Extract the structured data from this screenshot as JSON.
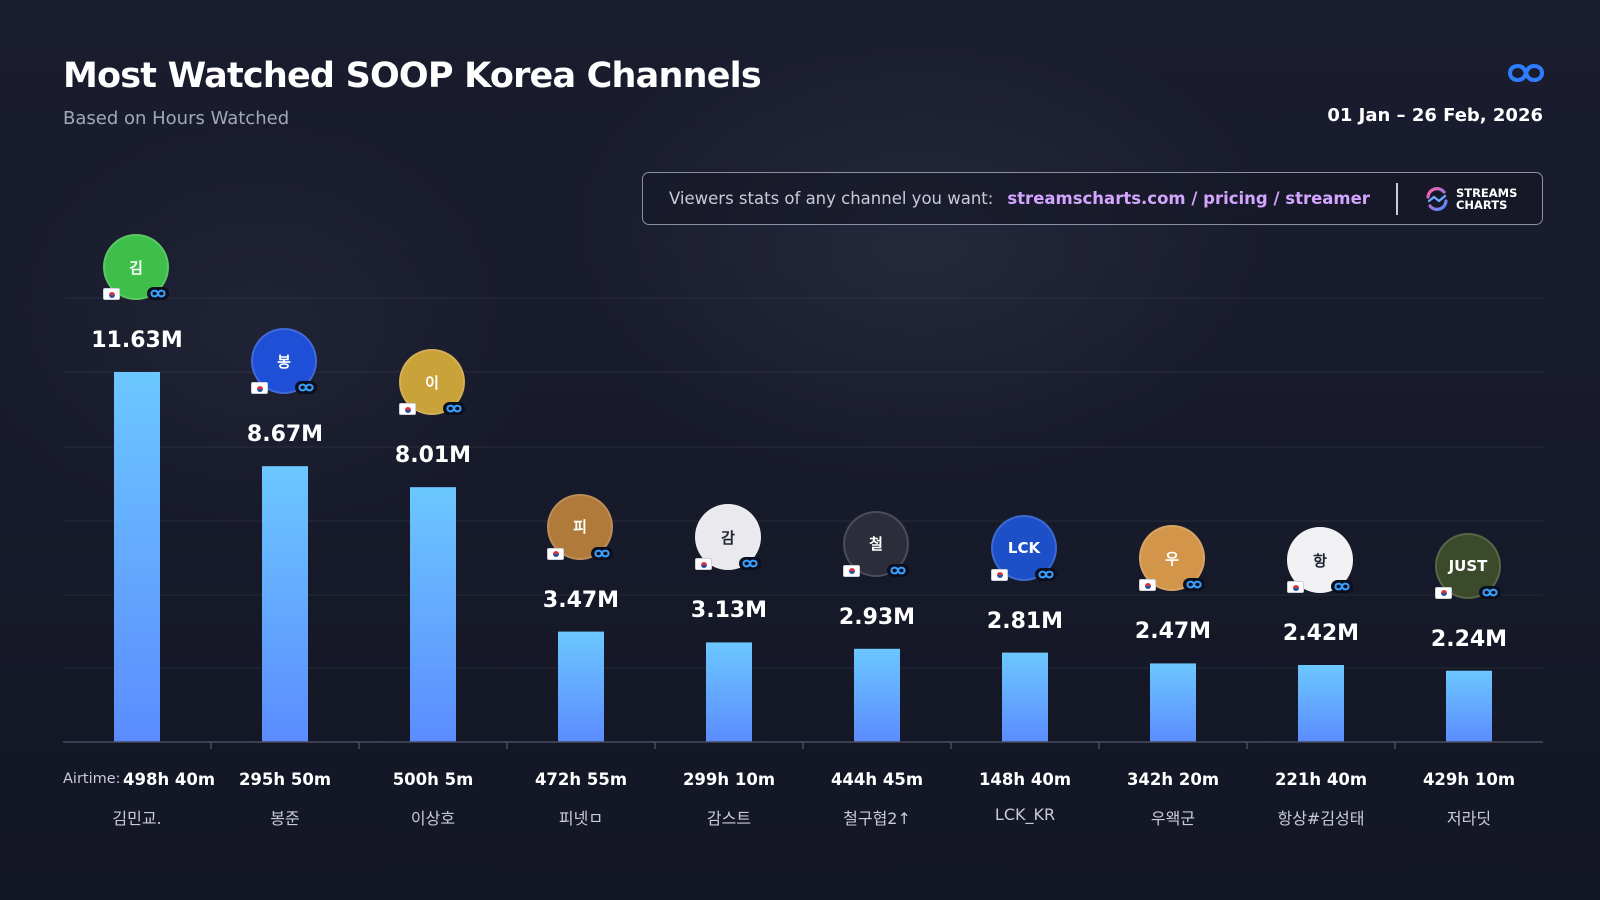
{
  "header": {
    "title": "Most Watched SOOP Korea Channels",
    "subtitle": "Based on Hours Watched",
    "date_range": "01 Jan – 26 Feb, 2026",
    "brand_icon": "soop-infinity-icon"
  },
  "promo": {
    "text": "Viewers stats of any channel you want:",
    "link": "streamscharts.com / pricing / streamer",
    "logo_line1": "STREAMS",
    "logo_line2": "CHARTS"
  },
  "airtime_label": "Airtime:",
  "colors": {
    "background": "#181b2c",
    "bar_top": "#6cc7ff",
    "bar_bottom": "#5b8cff",
    "link": "#d4a5ff",
    "badge": "#3aa0ff"
  },
  "channels": [
    {
      "name": "김민교.",
      "value_label": "11.63M",
      "airtime": "498h 40m",
      "avatar_color": "#3dbf4a",
      "avatar_text": "김"
    },
    {
      "name": "봉준",
      "value_label": "8.67M",
      "airtime": "295h 50m",
      "avatar_color": "#1f4fd6",
      "avatar_text": "봉"
    },
    {
      "name": "이상호",
      "value_label": "8.01M",
      "airtime": "500h 5m",
      "avatar_color": "#c9a23a",
      "avatar_text": "이"
    },
    {
      "name": "피넷ㅁ",
      "value_label": "3.47M",
      "airtime": "472h 55m",
      "avatar_color": "#b07a3a",
      "avatar_text": "피"
    },
    {
      "name": "감스트",
      "value_label": "3.13M",
      "airtime": "299h 10m",
      "avatar_color": "#e9e9ee",
      "avatar_text": "감"
    },
    {
      "name": "철구협2↑",
      "value_label": "2.93M",
      "airtime": "444h 45m",
      "avatar_color": "#2b2d3a",
      "avatar_text": "철"
    },
    {
      "name": "LCK_KR",
      "value_label": "2.81M",
      "airtime": "148h 40m",
      "avatar_color": "#1d4fc8",
      "avatar_text": "LCK"
    },
    {
      "name": "우왝군",
      "value_label": "2.47M",
      "airtime": "342h 20m",
      "avatar_color": "#d2954a",
      "avatar_text": "우"
    },
    {
      "name": "항상#김성태",
      "value_label": "2.42M",
      "airtime": "221h 40m",
      "avatar_color": "#f1f1f4",
      "avatar_text": "항"
    },
    {
      "name": "저라딧",
      "value_label": "2.24M",
      "airtime": "429h 10m",
      "avatar_color": "#3a4a2a",
      "avatar_text": "JUST"
    }
  ],
  "chart_data": {
    "type": "bar",
    "title": "Most Watched SOOP Korea Channels",
    "subtitle": "Based on Hours Watched",
    "categories": [
      "김민교.",
      "봉준",
      "이상호",
      "피넷ㅁ",
      "감스트",
      "철구협2↑",
      "LCK_KR",
      "우왝군",
      "항상#김성태",
      "저라딧"
    ],
    "values": [
      11.63,
      8.67,
      8.01,
      3.47,
      3.13,
      2.93,
      2.81,
      2.47,
      2.42,
      2.24
    ],
    "value_labels": [
      "11.63M",
      "8.67M",
      "8.01M",
      "3.47M",
      "3.13M",
      "2.93M",
      "2.81M",
      "2.47M",
      "2.42M",
      "2.24M"
    ],
    "airtime": [
      "498h 40m",
      "295h 50m",
      "500h 5m",
      "472h 55m",
      "299h 10m",
      "444h 45m",
      "148h 40m",
      "342h 20m",
      "221h 40m",
      "429h 10m"
    ],
    "xlabel": "",
    "ylabel": "",
    "ylim": [
      0,
      11.63
    ],
    "grid": true,
    "legend": "none"
  }
}
